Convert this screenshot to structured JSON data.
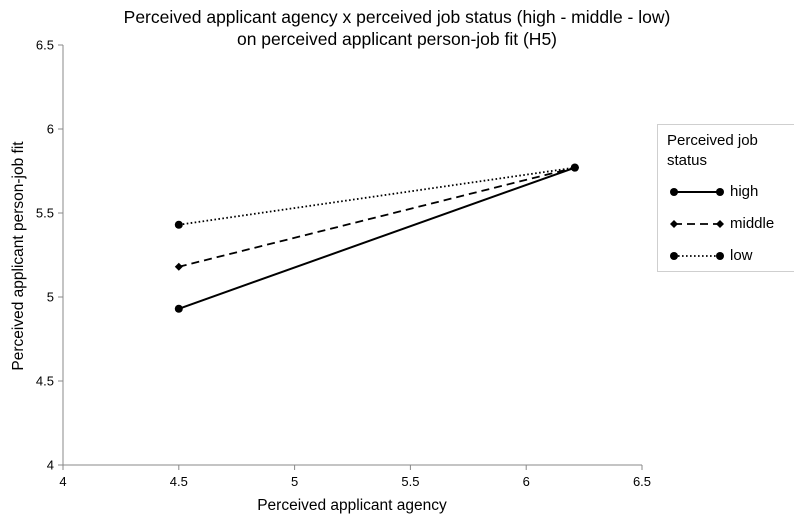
{
  "chart_data": {
    "type": "line",
    "title_lines": [
      "Perceived applicant agency x perceived job status (high - middle - low)",
      "on perceived applicant person-job fit (H5)"
    ],
    "xlabel": "Perceived applicant agency",
    "ylabel": "Perceived applicant person-job fit",
    "xlim": [
      4,
      6.5
    ],
    "ylim": [
      4,
      6.5
    ],
    "x_ticks": [
      "4",
      "4.5",
      "5",
      "5.5",
      "6",
      "6.5"
    ],
    "y_ticks": [
      "4",
      "4.5",
      "5",
      "5.5",
      "6",
      "6.5"
    ],
    "grid": false,
    "legend": {
      "title": "Perceived job status",
      "placement": "right"
    },
    "series": [
      {
        "name": "high",
        "style": "solid",
        "marker": "circle",
        "color": "#000000",
        "x": [
          4.5,
          6.21
        ],
        "y": [
          4.93,
          5.77
        ]
      },
      {
        "name": "middle",
        "style": "dashed",
        "marker": "diamond",
        "color": "#000000",
        "x": [
          4.5,
          6.21
        ],
        "y": [
          5.18,
          5.77
        ]
      },
      {
        "name": "low",
        "style": "dotted",
        "marker": "circle",
        "color": "#000000",
        "x": [
          4.5,
          6.21
        ],
        "y": [
          5.43,
          5.77
        ]
      }
    ]
  }
}
